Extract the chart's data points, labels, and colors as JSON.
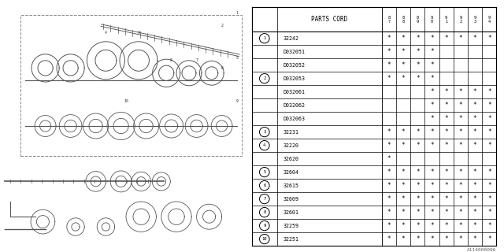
{
  "diagram_label": "A114000096",
  "table_header_col1": "PARTS CORD",
  "col_headers": [
    "8\n7",
    "8\n8",
    "8\n9",
    "9\n0",
    "9\n1",
    "9\n2",
    "9\n3",
    "9\n4"
  ],
  "rows": [
    {
      "num": "1",
      "part": "32242",
      "marks": [
        1,
        1,
        1,
        1,
        1,
        1,
        1,
        1
      ]
    },
    {
      "num": "",
      "part": "D032051",
      "marks": [
        1,
        1,
        1,
        1,
        0,
        0,
        0,
        0
      ]
    },
    {
      "num": "",
      "part": "D032052",
      "marks": [
        1,
        1,
        1,
        1,
        0,
        0,
        0,
        0
      ]
    },
    {
      "num": "2",
      "part": "D032053",
      "marks": [
        1,
        1,
        1,
        1,
        0,
        0,
        0,
        0
      ]
    },
    {
      "num": "",
      "part": "D032061",
      "marks": [
        0,
        0,
        0,
        1,
        1,
        1,
        1,
        1
      ]
    },
    {
      "num": "",
      "part": "D032062",
      "marks": [
        0,
        0,
        0,
        1,
        1,
        1,
        1,
        1
      ]
    },
    {
      "num": "",
      "part": "D032063",
      "marks": [
        0,
        0,
        0,
        1,
        1,
        1,
        1,
        1
      ]
    },
    {
      "num": "3",
      "part": "32231",
      "marks": [
        1,
        1,
        1,
        1,
        1,
        1,
        1,
        1
      ]
    },
    {
      "num": "4",
      "part": "32220",
      "marks": [
        1,
        1,
        1,
        1,
        1,
        1,
        1,
        1
      ]
    },
    {
      "num": "",
      "part": "32620",
      "marks": [
        1,
        0,
        0,
        0,
        0,
        0,
        0,
        0
      ]
    },
    {
      "num": "5",
      "part": "32604",
      "marks": [
        1,
        1,
        1,
        1,
        1,
        1,
        1,
        1
      ]
    },
    {
      "num": "6",
      "part": "32615",
      "marks": [
        1,
        1,
        1,
        1,
        1,
        1,
        1,
        1
      ]
    },
    {
      "num": "7",
      "part": "32609",
      "marks": [
        1,
        1,
        1,
        1,
        1,
        1,
        1,
        1
      ]
    },
    {
      "num": "8",
      "part": "32601",
      "marks": [
        1,
        1,
        1,
        1,
        1,
        1,
        1,
        1
      ]
    },
    {
      "num": "9",
      "part": "32259",
      "marks": [
        1,
        1,
        1,
        1,
        1,
        1,
        1,
        1
      ]
    },
    {
      "num": "10",
      "part": "32251",
      "marks": [
        1,
        1,
        1,
        1,
        1,
        1,
        1,
        1
      ]
    }
  ],
  "circled_rows": {
    "1": 0,
    "2": 3,
    "3": 7,
    "4": 8,
    "5": 10,
    "6": 11,
    "7": 12,
    "8": 13,
    "9": 14,
    "10": 15
  },
  "bg_color": "#ffffff",
  "line_color": "#000000",
  "text_color": "#000000"
}
